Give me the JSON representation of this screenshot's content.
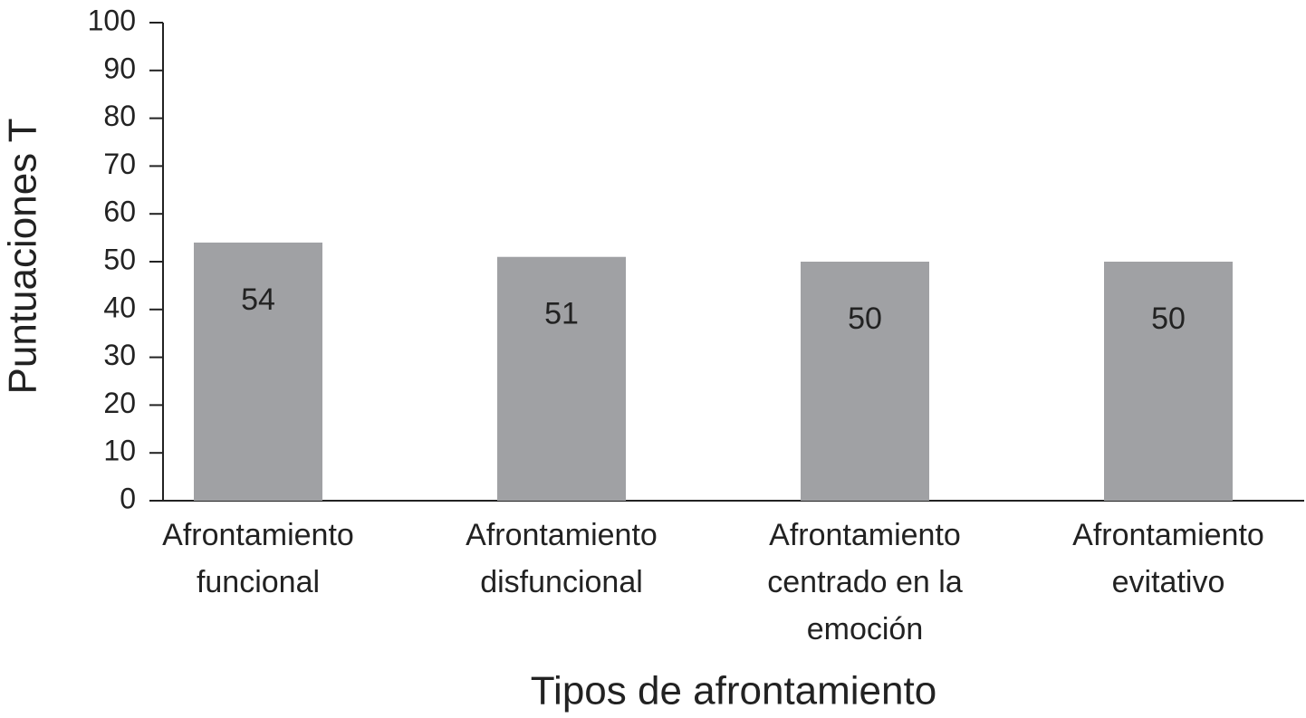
{
  "chart_data": {
    "type": "bar",
    "x_label": "Tipos de afrontamiento",
    "y_label": "Puntuaciones T",
    "categories": [
      "Afrontamiento funcional",
      "Afrontamiento disfuncional",
      "Afrontamiento centrado en la emoción",
      "Afrontamiento evitativo"
    ],
    "values": [
      54,
      51,
      50,
      50
    ],
    "color": "#a0a1a4",
    "ylim": [
      0,
      100
    ],
    "yticks": [
      0,
      10,
      20,
      30,
      40,
      50,
      60,
      70,
      80,
      90,
      100
    ],
    "grid": false
  }
}
